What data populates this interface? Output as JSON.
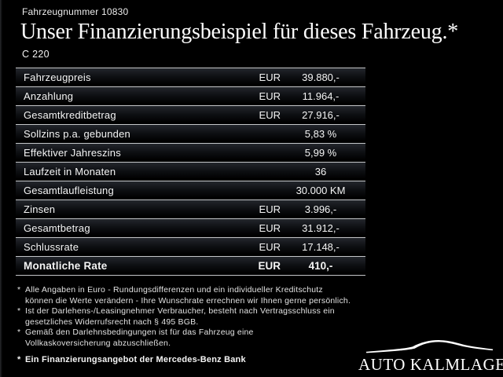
{
  "header": {
    "vehicle_number": "Fahrzeugnummer 10830",
    "title": "Unser Finanzierungsbeispiel für dieses Fahrzeug.*",
    "model": "C 220"
  },
  "table": {
    "rows": [
      {
        "label": "Fahrzeugpreis",
        "currency": "EUR",
        "value": "39.880,-",
        "bold": false
      },
      {
        "label": "Anzahlung",
        "currency": "EUR",
        "value": "11.964,-",
        "bold": false
      },
      {
        "label": "Gesamtkreditbetrag",
        "currency": "EUR",
        "value": "27.916,-",
        "bold": false
      },
      {
        "label": "Sollzins p.a. gebunden",
        "currency": "",
        "value": "5,83 %",
        "bold": false
      },
      {
        "label": "Effektiver Jahreszins",
        "currency": "",
        "value": "5,99 %",
        "bold": false
      },
      {
        "label": "Laufzeit in Monaten",
        "currency": "",
        "value": "36",
        "bold": false
      },
      {
        "label": "Gesamtlaufleistung",
        "currency": "",
        "value": "30.000 KM",
        "bold": false
      },
      {
        "label": "Zinsen",
        "currency": "EUR",
        "value": "3.996,-",
        "bold": false
      },
      {
        "label": "Gesamtbetrag",
        "currency": "EUR",
        "value": "31.912,-",
        "bold": false
      },
      {
        "label": "Schlussrate",
        "currency": "EUR",
        "value": "17.148,-",
        "bold": false
      },
      {
        "label": "Monatliche Rate",
        "currency": "EUR",
        "value": "410,-",
        "bold": true
      }
    ]
  },
  "footnote_marker": "*",
  "footnotes": [
    {
      "lines": [
        "Alle Angaben in Euro - Rundungsdifferenzen und ein individueller Kreditschutz",
        "können die Werte verändern - Ihre Wunschrate errechnen wir Ihnen gerne persönlich."
      ]
    },
    {
      "lines": [
        "Ist der Darlehens-/Leasingnehmer Verbraucher, besteht nach Vertragsschluss ein",
        "gesetzliches Widerrufsrecht nach § 495 BGB."
      ]
    },
    {
      "lines": [
        "Gemäß den Darlehnsbedingungen ist für das Fahrzeug eine",
        "Vollkaskoversicherung abzuschließen."
      ]
    }
  ],
  "bank_note": "Ein Finanzierungsangebot der Mercedes-Benz Bank",
  "dealer": {
    "name": "AUTO KALMLAGE",
    "logo_icon": "car-silhouette"
  },
  "colors": {
    "background": "#000000",
    "text": "#ffffff",
    "table_line": "#c4c6c8",
    "row_gradient_top": "#23262c",
    "footnote_text": "#e2e2e2"
  }
}
